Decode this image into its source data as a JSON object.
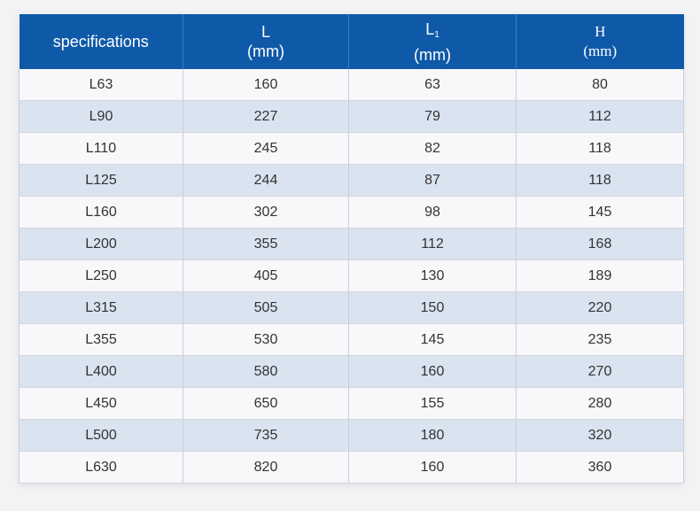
{
  "table": {
    "headers": [
      {
        "line1": "specifications",
        "line2": ""
      },
      {
        "line1": "L",
        "line2": "(mm)"
      },
      {
        "line1": "L",
        "sub": "1",
        "line2": "(mm)"
      },
      {
        "line1": "H",
        "line2": "(mm)"
      }
    ],
    "rows": [
      [
        "L63",
        "160",
        "63",
        "80"
      ],
      [
        "L90",
        "227",
        "79",
        "112"
      ],
      [
        "L110",
        "245",
        "82",
        "118"
      ],
      [
        "L125",
        "244",
        "87",
        "118"
      ],
      [
        "L160",
        "302",
        "98",
        "145"
      ],
      [
        "L200",
        "355",
        "112",
        "168"
      ],
      [
        "L250",
        "405",
        "130",
        "189"
      ],
      [
        "L315",
        "505",
        "150",
        "220"
      ],
      [
        "L355",
        "530",
        "145",
        "235"
      ],
      [
        "L400",
        "580",
        "160",
        "270"
      ],
      [
        "L450",
        "650",
        "155",
        "280"
      ],
      [
        "L500",
        "735",
        "180",
        "320"
      ],
      [
        "L630",
        "820",
        "160",
        "360"
      ]
    ]
  },
  "colors": {
    "header_bg": "#0f5aa8",
    "header_text": "#ffffff",
    "row_light": "#f8f8fa",
    "row_striped": "#dae3f0"
  }
}
